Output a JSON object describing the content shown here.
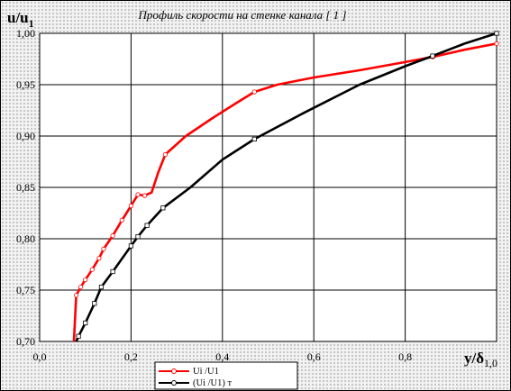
{
  "chart_data": {
    "type": "line",
    "title": "Профиль скорости на стенке канала [ 1 ]",
    "ylabel": {
      "base": "u/u",
      "sub": "1"
    },
    "xlabel": {
      "base": "y/δ",
      "sub": "1,0"
    },
    "xlim": [
      0,
      1
    ],
    "ylim": [
      0.7,
      1.0
    ],
    "x_ticks": [
      "0,0",
      "0,2",
      "0,4",
      "0,6",
      "0,8"
    ],
    "y_ticks": [
      "0,70",
      "0,75",
      "0,80",
      "0,85",
      "0,90",
      "0,95",
      "1,00"
    ],
    "grid": true,
    "legend_position": "bottom-left",
    "series": [
      {
        "name": "Ui /U1",
        "color": "#ff0000",
        "marker": "circle",
        "points": [
          [
            0.075,
            0.7
          ],
          [
            0.08,
            0.745
          ],
          [
            0.09,
            0.753
          ],
          [
            0.1,
            0.76
          ],
          [
            0.115,
            0.77
          ],
          [
            0.13,
            0.781
          ],
          [
            0.14,
            0.79
          ],
          [
            0.16,
            0.803
          ],
          [
            0.18,
            0.818
          ],
          [
            0.2,
            0.832
          ],
          [
            0.215,
            0.843
          ],
          [
            0.23,
            0.842
          ],
          [
            0.245,
            0.845
          ],
          [
            0.26,
            0.865
          ],
          [
            0.275,
            0.882
          ],
          [
            0.32,
            0.9
          ],
          [
            0.38,
            0.918
          ],
          [
            0.43,
            0.932
          ],
          [
            0.47,
            0.943
          ],
          [
            0.52,
            0.95
          ],
          [
            0.6,
            0.957
          ],
          [
            0.7,
            0.964
          ],
          [
            0.8,
            0.972
          ],
          [
            0.86,
            0.977
          ],
          [
            0.93,
            0.984
          ],
          [
            1.0,
            0.99
          ]
        ],
        "marker_points": [
          [
            0.08,
            0.745
          ],
          [
            0.09,
            0.753
          ],
          [
            0.1,
            0.76
          ],
          [
            0.115,
            0.77
          ],
          [
            0.13,
            0.781
          ],
          [
            0.14,
            0.79
          ],
          [
            0.16,
            0.803
          ],
          [
            0.18,
            0.818
          ],
          [
            0.2,
            0.832
          ],
          [
            0.215,
            0.843
          ],
          [
            0.23,
            0.842
          ],
          [
            0.275,
            0.882
          ],
          [
            0.47,
            0.943
          ],
          [
            0.86,
            0.977
          ],
          [
            1.0,
            0.99
          ]
        ]
      },
      {
        "name": "(Ui /U1) т",
        "color": "#000000",
        "marker": "square",
        "points": [
          [
            0.08,
            0.7
          ],
          [
            0.085,
            0.705
          ],
          [
            0.1,
            0.718
          ],
          [
            0.12,
            0.737
          ],
          [
            0.135,
            0.753
          ],
          [
            0.16,
            0.768
          ],
          [
            0.2,
            0.793
          ],
          [
            0.215,
            0.802
          ],
          [
            0.235,
            0.813
          ],
          [
            0.27,
            0.83
          ],
          [
            0.33,
            0.85
          ],
          [
            0.4,
            0.877
          ],
          [
            0.47,
            0.897
          ],
          [
            0.58,
            0.923
          ],
          [
            0.7,
            0.95
          ],
          [
            0.8,
            0.968
          ],
          [
            0.86,
            0.978
          ],
          [
            0.93,
            0.99
          ],
          [
            1.0,
            1.0
          ]
        ],
        "marker_points": [
          [
            0.085,
            0.705
          ],
          [
            0.1,
            0.718
          ],
          [
            0.12,
            0.737
          ],
          [
            0.135,
            0.753
          ],
          [
            0.16,
            0.768
          ],
          [
            0.2,
            0.793
          ],
          [
            0.215,
            0.802
          ],
          [
            0.235,
            0.813
          ],
          [
            0.27,
            0.83
          ],
          [
            0.47,
            0.897
          ],
          [
            0.86,
            0.978
          ],
          [
            1.0,
            1.0
          ]
        ]
      }
    ]
  }
}
